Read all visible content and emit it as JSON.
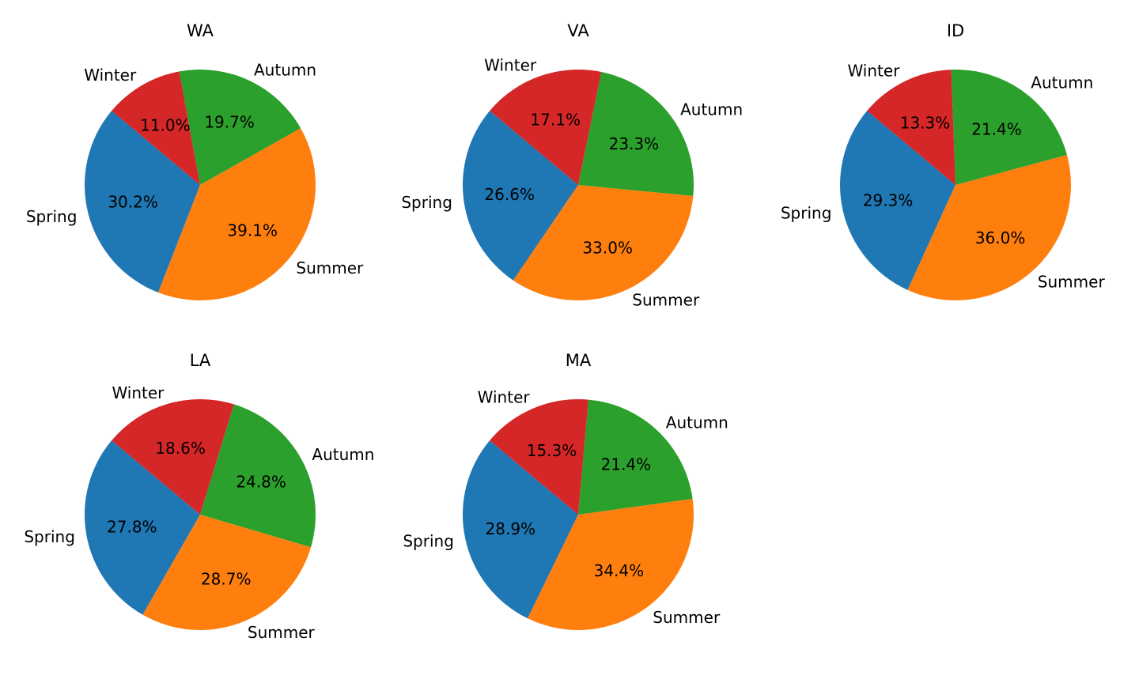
{
  "chart_data": [
    {
      "type": "pie",
      "title": "WA",
      "categories": [
        "Spring",
        "Summer",
        "Autumn",
        "Winter"
      ],
      "values": [
        30.2,
        39.1,
        19.7,
        11.0
      ],
      "percent_labels": [
        "30.2%",
        "39.1%",
        "19.7%",
        "11.0%"
      ],
      "start_angle_deg": 140,
      "colors": [
        "#1f77b4",
        "#ff7f0e",
        "#2ca02c",
        "#d62728"
      ]
    },
    {
      "type": "pie",
      "title": "VA",
      "categories": [
        "Spring",
        "Summer",
        "Autumn",
        "Winter"
      ],
      "values": [
        26.6,
        33.0,
        23.3,
        17.1
      ],
      "percent_labels": [
        "26.6%",
        "33.0%",
        "23.3%",
        "17.1%"
      ],
      "start_angle_deg": 140,
      "colors": [
        "#1f77b4",
        "#ff7f0e",
        "#2ca02c",
        "#d62728"
      ]
    },
    {
      "type": "pie",
      "title": "ID",
      "categories": [
        "Spring",
        "Summer",
        "Autumn",
        "Winter"
      ],
      "values": [
        29.3,
        36.0,
        21.4,
        13.3
      ],
      "percent_labels": [
        "29.3%",
        "36.0%",
        "21.4%",
        "13.3%"
      ],
      "start_angle_deg": 140,
      "colors": [
        "#1f77b4",
        "#ff7f0e",
        "#2ca02c",
        "#d62728"
      ]
    },
    {
      "type": "pie",
      "title": "LA",
      "categories": [
        "Spring",
        "Summer",
        "Autumn",
        "Winter"
      ],
      "values": [
        27.8,
        28.7,
        24.8,
        18.6
      ],
      "percent_labels": [
        "27.8%",
        "28.7%",
        "24.8%",
        "18.6%"
      ],
      "start_angle_deg": 140,
      "colors": [
        "#1f77b4",
        "#ff7f0e",
        "#2ca02c",
        "#d62728"
      ]
    },
    {
      "type": "pie",
      "title": "MA",
      "categories": [
        "Spring",
        "Summer",
        "Autumn",
        "Winter"
      ],
      "values": [
        28.9,
        34.4,
        21.4,
        15.3
      ],
      "percent_labels": [
        "28.9%",
        "34.4%",
        "21.4%",
        "15.3%"
      ],
      "start_angle_deg": 140,
      "colors": [
        "#1f77b4",
        "#ff7f0e",
        "#2ca02c",
        "#d62728"
      ]
    }
  ]
}
